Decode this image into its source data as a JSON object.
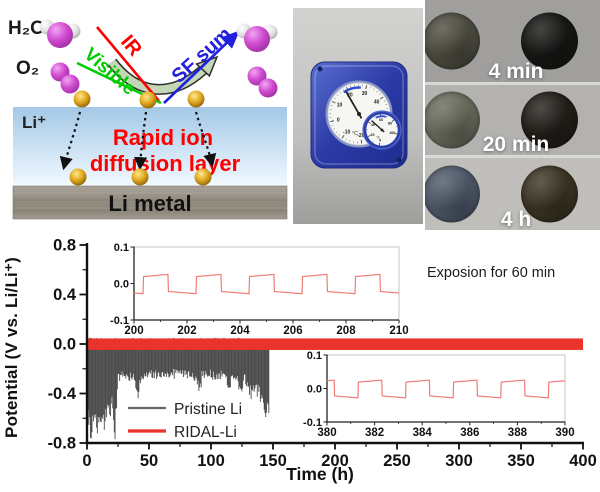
{
  "schematic": {
    "h2o": "H₂O",
    "o2": "O₂",
    "ir": "IR",
    "visible": "Visible",
    "sf_sum": "SF sum",
    "li_ion": "Li⁺",
    "rapid_line1": "Rapid ion",
    "rapid_line2": "diffusion layer",
    "li_metal": "Li metal",
    "colors": {
      "ir": "#ff0000",
      "visible": "#00cc00",
      "sf_sum": "#2020dd",
      "rapid_text": "#ff0000"
    }
  },
  "hygrometer": {
    "temp_unit": "°C",
    "humidity_unit": "%",
    "temp_labels": [
      {
        "t": "-20",
        "a": -185
      },
      {
        "t": "-10",
        "a": -145
      },
      {
        "t": "0",
        "a": -105
      },
      {
        "t": "10",
        "a": -65
      },
      {
        "t": "20",
        "a": -25
      },
      {
        "t": "30",
        "a": 15
      },
      {
        "t": "40",
        "a": 55
      },
      {
        "t": "50",
        "a": 95
      }
    ],
    "humidity_labels": [
      {
        "t": "0",
        "a": -170
      },
      {
        "t": "20",
        "a": -115
      },
      {
        "t": "40",
        "a": -60
      },
      {
        "t": "60",
        "a": -5
      },
      {
        "t": "80",
        "a": 50
      },
      {
        "t": "100",
        "a": 105
      }
    ],
    "temp_needle_angle": -30,
    "humidity_needle_angle": -48,
    "body_color": "#2b3aa6"
  },
  "samples": {
    "rows": [
      {
        "label": "4 min",
        "left_disc": "#4c4c40",
        "right_disc": "#171715",
        "bg": "#a09f9d"
      },
      {
        "label": "20 min",
        "left_disc": "#676b5c",
        "right_disc": "#241e19",
        "bg": "#b3b2b0"
      },
      {
        "label": "4 h",
        "left_disc": "#4e5869",
        "right_disc": "#3b3424",
        "bg": "#bfbebb"
      }
    ]
  },
  "chart_data": {
    "type": "line",
    "xlabel": "Time (h)",
    "ylabel": "Potential (V vs. Li/Li⁺)",
    "annotation": "Exposion for 60 min",
    "xlim": [
      0,
      400
    ],
    "ylim": [
      -0.8,
      0.8
    ],
    "xticks": [
      0,
      50,
      100,
      150,
      200,
      250,
      300,
      350,
      400
    ],
    "x_minor_step": 25,
    "yticks": [
      "0.8",
      "0.4",
      "0.0",
      "-0.4",
      "-0.8"
    ],
    "y_minor_values": [
      0.6,
      0.2,
      -0.2,
      -0.6
    ],
    "grid": false,
    "legend_position": "inside-bottom-left",
    "series": [
      {
        "name": "Pristine Li",
        "color": "#4a4a4a",
        "legend_color": "#666666",
        "type": "noisy-spikes",
        "t_start": 0,
        "t_end": 147,
        "top_band": 0.05,
        "depth_envelope": [
          [
            0,
            0.55
          ],
          [
            3,
            0.78
          ],
          [
            8,
            0.8
          ],
          [
            12,
            0.62
          ],
          [
            15,
            0.75
          ],
          [
            20,
            0.58
          ],
          [
            23,
            0.8
          ],
          [
            25,
            0.3
          ],
          [
            38,
            0.3
          ],
          [
            41,
            0.46
          ],
          [
            44,
            0.29
          ],
          [
            60,
            0.28
          ],
          [
            88,
            0.3
          ],
          [
            91,
            0.46
          ],
          [
            93,
            0.28
          ],
          [
            112,
            0.3
          ],
          [
            114,
            0.42
          ],
          [
            118,
            0.3
          ],
          [
            124,
            0.4
          ],
          [
            128,
            0.33
          ],
          [
            132,
            0.46
          ],
          [
            136,
            0.38
          ],
          [
            140,
            0.52
          ],
          [
            144,
            0.6
          ],
          [
            147,
            0.62
          ]
        ]
      },
      {
        "name": "RIDAL-Li",
        "color": "#e9332b",
        "legend_color": "#e9332b",
        "type": "band",
        "t_start": 0,
        "t_end": 400,
        "high": 0.045,
        "low": -0.048
      }
    ],
    "insets": [
      {
        "xlim": [
          200,
          210
        ],
        "xticks": [
          200,
          202,
          204,
          206,
          208,
          210
        ],
        "ylim": [
          -0.1,
          0.1
        ],
        "yticks": [
          "0.1",
          "0.0",
          "-0.1"
        ],
        "line_color": "#ef7d76",
        "wave": {
          "period": 2,
          "high": 0.022,
          "low": -0.025,
          "up_start": 0.35,
          "up_len": 0.95
        }
      },
      {
        "xlim": [
          380,
          390
        ],
        "xticks": [
          380,
          382,
          384,
          386,
          388,
          390
        ],
        "ylim": [
          -0.1,
          0.1
        ],
        "yticks": [
          "0.1",
          "0.0",
          "-0.1"
        ],
        "line_color": "#ef7d76",
        "wave": {
          "period": 2,
          "high": 0.022,
          "low": -0.025,
          "up_start": 1.3,
          "up_len": 1.0
        }
      }
    ]
  }
}
